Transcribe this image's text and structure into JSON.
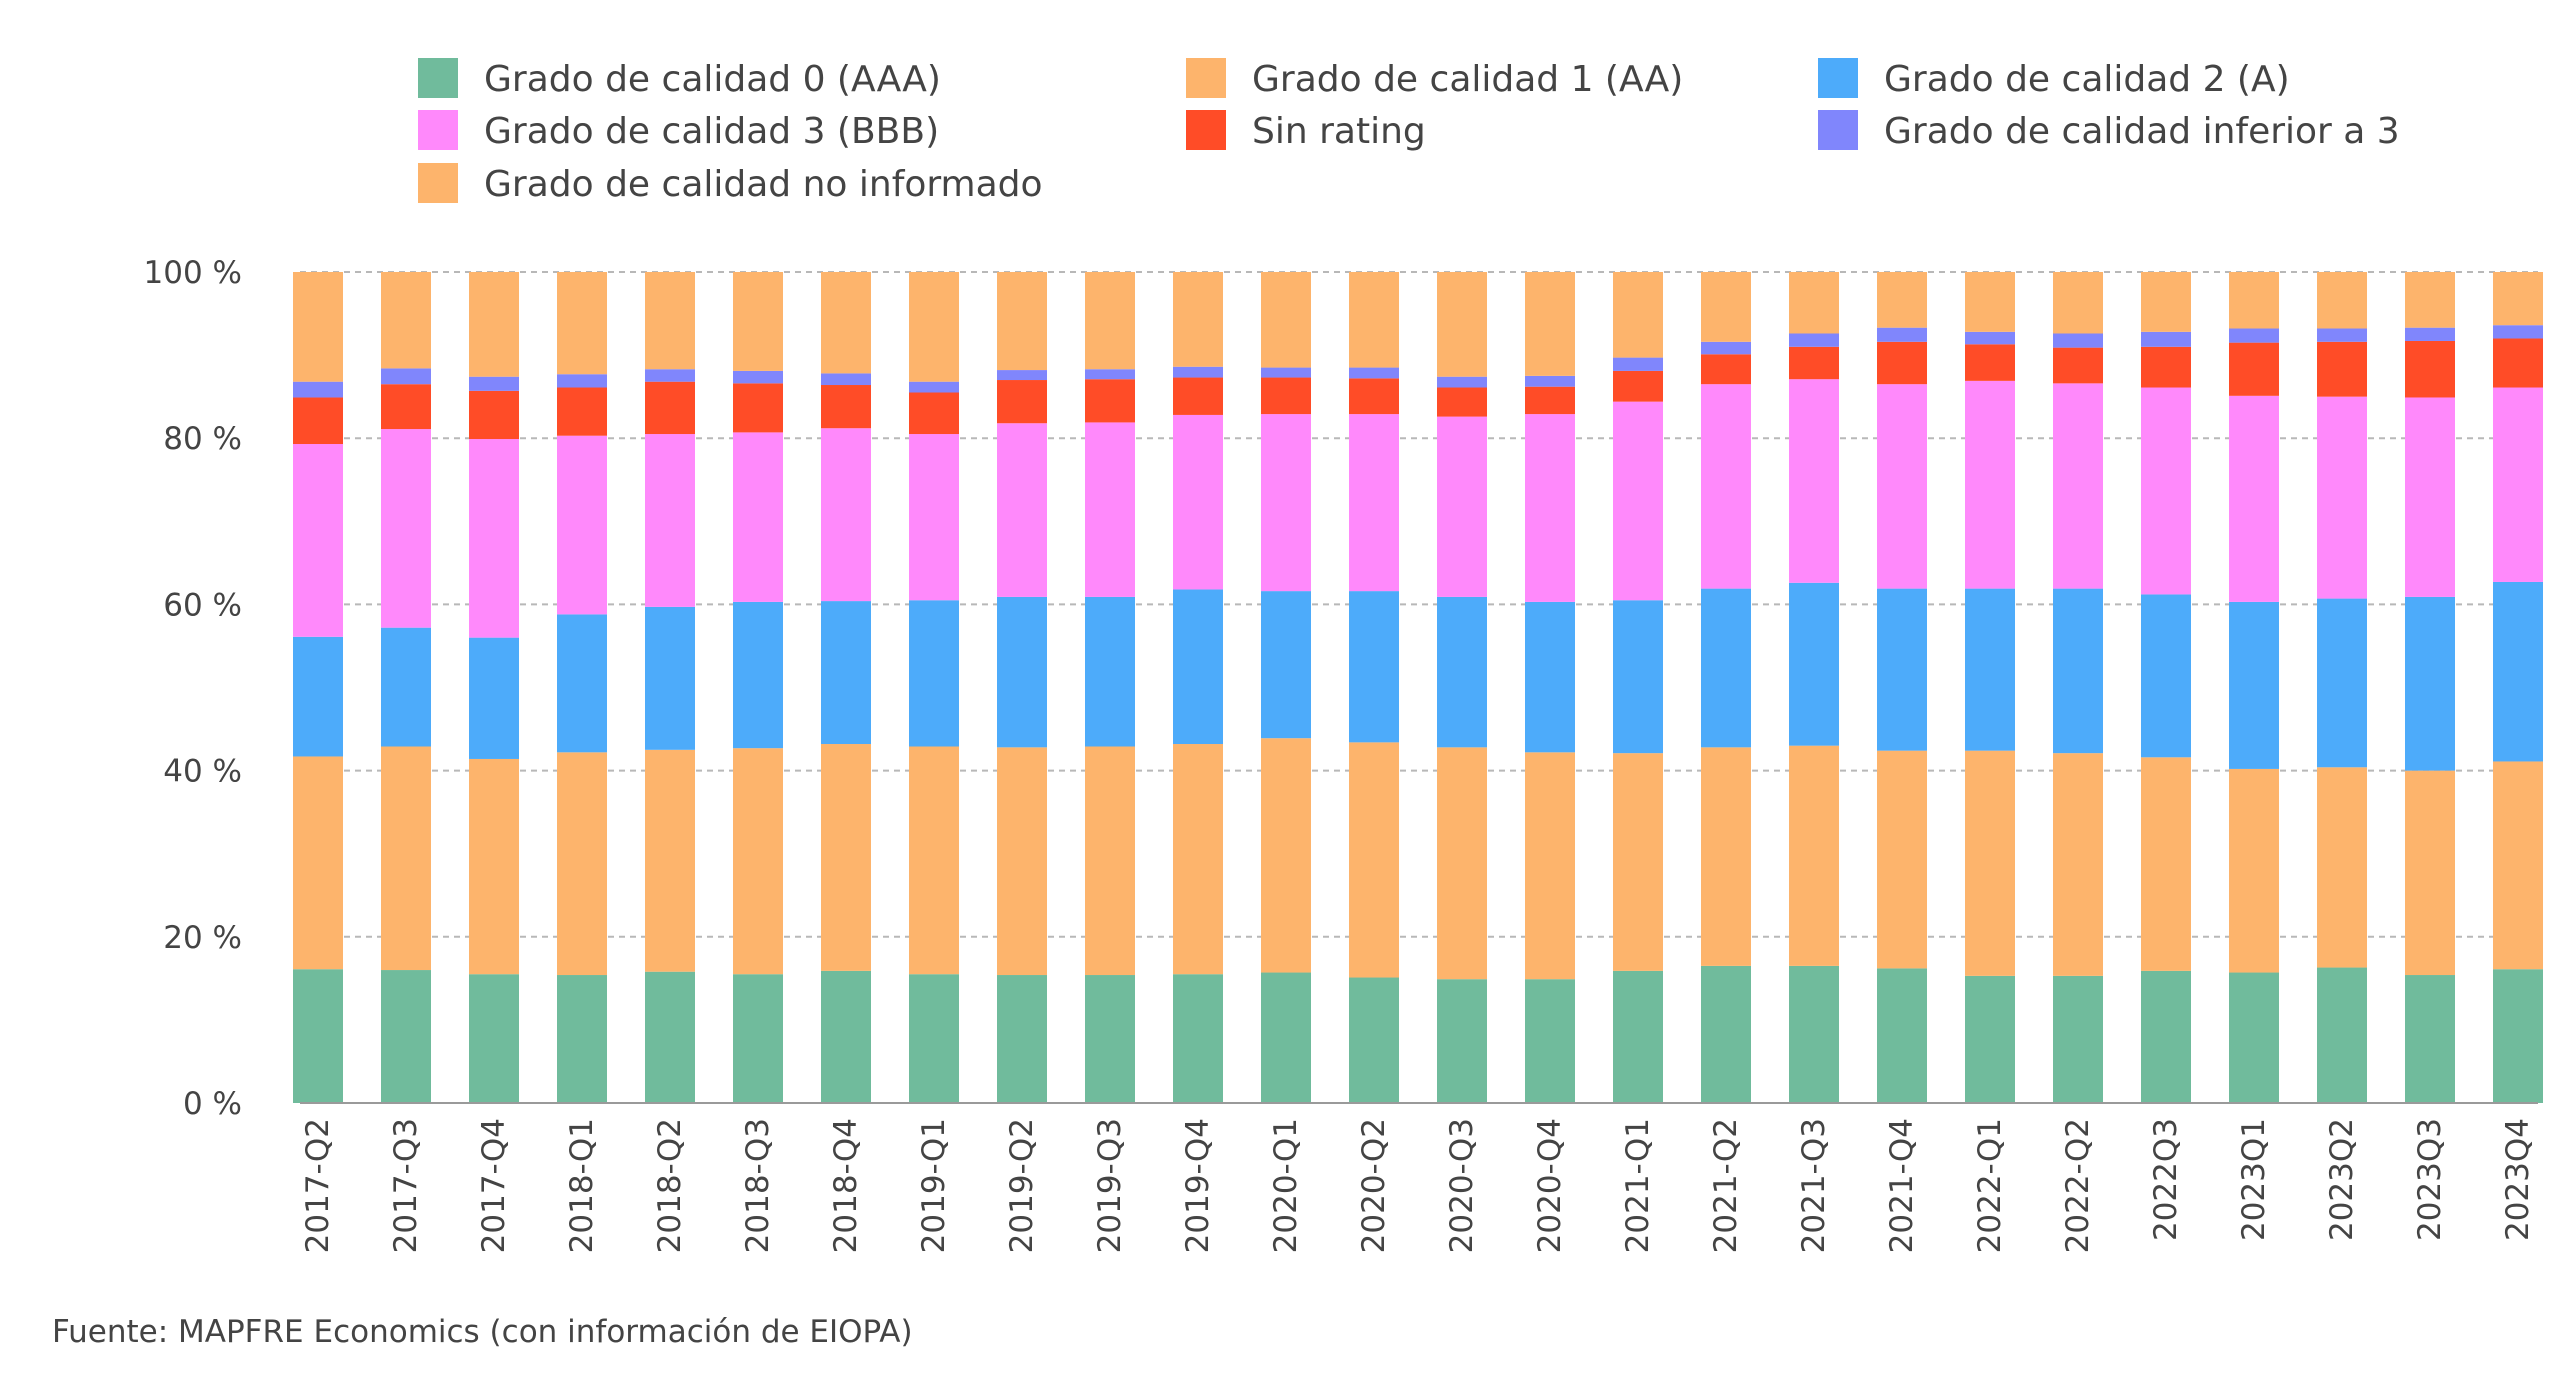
{
  "source": "Fuente: MAPFRE Economics (con información de EIOPA)",
  "chart_data": {
    "type": "bar",
    "stacked": true,
    "ylim": [
      0,
      100
    ],
    "y_ticks": [
      0,
      20,
      40,
      60,
      80,
      100
    ],
    "y_tick_labels": [
      "0 %",
      "20 %",
      "40 %",
      "60 %",
      "80 %",
      "100 %"
    ],
    "grid": "horizontal dashed",
    "legend_position": "top",
    "categories": [
      "2017-Q2",
      "2017-Q3",
      "2017-Q4",
      "2018-Q1",
      "2018-Q2",
      "2018-Q3",
      "2018-Q4",
      "2019-Q1",
      "2019-Q2",
      "2019-Q3",
      "2019-Q4",
      "2020-Q1",
      "2020-Q2",
      "2020-Q3",
      "2020-Q4",
      "2021-Q1",
      "2021-Q2",
      "2021-Q3",
      "2021-Q4",
      "2022-Q1",
      "2022-Q2",
      "2022Q3",
      "2023Q1",
      "2023Q2",
      "2023Q3",
      "2023Q4"
    ],
    "series": [
      {
        "name": "Grado de calidad 0 (AAA)",
        "color": "#70BB9C",
        "values": [
          16.1,
          16.0,
          15.5,
          15.4,
          15.8,
          15.5,
          15.9,
          15.5,
          15.4,
          15.4,
          15.5,
          15.7,
          15.1,
          14.9,
          14.9,
          15.9,
          16.5,
          16.5,
          16.2,
          15.3,
          15.3,
          15.9,
          15.7,
          16.3,
          15.4,
          16.1
        ]
      },
      {
        "name": "Grado de calidad 1 (AA)",
        "color": "#FDB46C",
        "values": [
          25.6,
          26.9,
          25.9,
          26.8,
          26.7,
          27.2,
          27.3,
          27.4,
          27.4,
          27.5,
          27.7,
          28.2,
          28.3,
          27.9,
          27.3,
          26.2,
          26.3,
          26.5,
          26.2,
          27.1,
          26.8,
          25.7,
          24.5,
          24.1,
          24.6,
          25.0
        ]
      },
      {
        "name": "Grado de calidad 2 (A)",
        "color": "#4DABFA",
        "values": [
          14.4,
          14.3,
          14.6,
          16.6,
          17.2,
          17.6,
          17.2,
          17.6,
          18.1,
          18.0,
          18.6,
          17.7,
          18.2,
          18.1,
          18.1,
          18.4,
          19.1,
          19.6,
          19.5,
          19.5,
          19.8,
          19.6,
          20.1,
          20.3,
          20.9,
          21.6
        ]
      },
      {
        "name": "Grado de calidad 3 (BBB)",
        "color": "#FF89FB",
        "values": [
          23.2,
          23.9,
          23.9,
          21.5,
          20.8,
          20.4,
          20.8,
          20.0,
          20.9,
          21.0,
          21.0,
          21.3,
          21.3,
          21.7,
          22.6,
          23.9,
          24.6,
          24.5,
          24.6,
          25.0,
          24.7,
          24.9,
          24.8,
          24.3,
          24.0,
          23.4
        ]
      },
      {
        "name": "Sin rating",
        "color": "#FF4C27",
        "values": [
          5.6,
          5.4,
          5.8,
          5.8,
          6.3,
          5.9,
          5.2,
          5.0,
          5.2,
          5.2,
          4.5,
          4.4,
          4.3,
          3.5,
          3.3,
          3.7,
          3.6,
          3.9,
          5.1,
          4.4,
          4.3,
          4.9,
          6.4,
          6.6,
          6.8,
          5.9
        ]
      },
      {
        "name": "Grado de calidad inferior a 3",
        "color": "#8086FC",
        "values": [
          1.9,
          1.9,
          1.7,
          1.6,
          1.5,
          1.5,
          1.4,
          1.3,
          1.2,
          1.2,
          1.3,
          1.2,
          1.3,
          1.3,
          1.3,
          1.6,
          1.5,
          1.6,
          1.7,
          1.5,
          1.7,
          1.8,
          1.7,
          1.6,
          1.6,
          1.6
        ]
      },
      {
        "name": "Grado de calidad no informado",
        "color": "#FDB46C",
        "values": [
          13.2,
          11.6,
          12.6,
          12.3,
          11.7,
          11.9,
          12.2,
          13.2,
          11.8,
          11.7,
          11.4,
          11.5,
          11.5,
          12.6,
          12.5,
          10.3,
          8.4,
          7.4,
          6.7,
          7.2,
          7.4,
          7.2,
          6.8,
          6.8,
          6.7,
          6.4
        ]
      }
    ]
  }
}
